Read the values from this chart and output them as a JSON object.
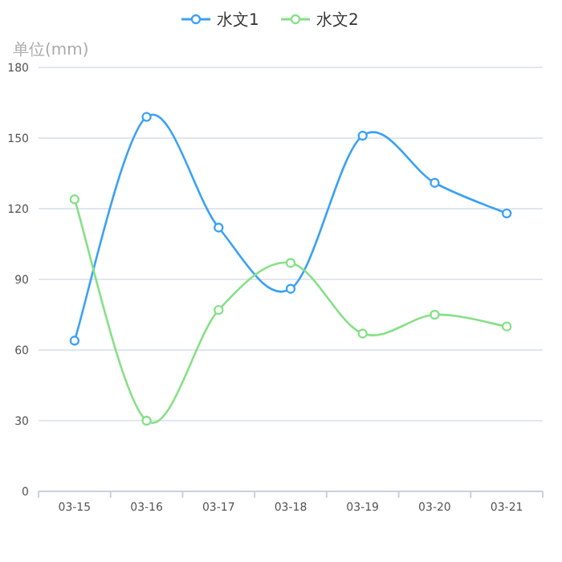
{
  "chart_data": {
    "type": "line",
    "ylabel": "单位(mm)",
    "categories": [
      "03-15",
      "03-16",
      "03-17",
      "03-18",
      "03-19",
      "03-20",
      "03-21"
    ],
    "series": [
      {
        "name": "水文1",
        "color": "#3aa1f5",
        "values": [
          64,
          159,
          112,
          86,
          151,
          131,
          118
        ]
      },
      {
        "name": "水文2",
        "color": "#86e086",
        "values": [
          124,
          30,
          77,
          97,
          67,
          75,
          70
        ]
      }
    ],
    "ylim": [
      0,
      180
    ],
    "yticks": [
      0,
      30,
      60,
      90,
      120,
      150,
      180
    ],
    "grid": "y",
    "legend": "top",
    "marker": "circle",
    "line_style": "solid"
  }
}
